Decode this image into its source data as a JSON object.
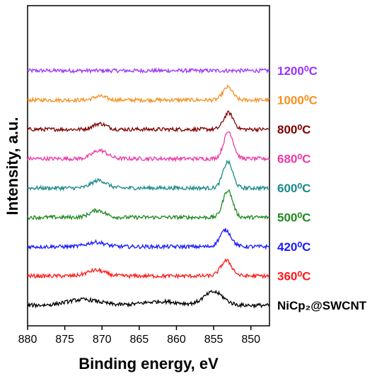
{
  "chart_data": {
    "type": "line",
    "xlabel": "Binding energy, eV",
    "ylabel": "Intensity, a.u.",
    "xlim": [
      880,
      847.5
    ],
    "x_reversed": true,
    "x_ticks": [
      880,
      875,
      870,
      865,
      860,
      855,
      850
    ],
    "y_ticks_shown": false,
    "grid": false,
    "legend": "labels placed at right end of each trace",
    "series": [
      {
        "name": "1200⁰C",
        "color": "#9933ff",
        "offset": 8.0,
        "features": []
      },
      {
        "name": "1000⁰C",
        "color": "#f5901e",
        "offset": 7.0,
        "features": [
          {
            "center": 870.3,
            "width": 0.8,
            "height": 0.12
          },
          {
            "center": 853.1,
            "width": 0.65,
            "height": 0.4
          }
        ]
      },
      {
        "name": "800⁰C",
        "color": "#800000",
        "offset": 6.0,
        "features": [
          {
            "center": 870.3,
            "width": 0.9,
            "height": 0.18
          },
          {
            "center": 853.0,
            "width": 0.65,
            "height": 0.52
          }
        ]
      },
      {
        "name": "680⁰C",
        "color": "#ec3aa6",
        "offset": 5.0,
        "features": [
          {
            "center": 870.3,
            "width": 1.0,
            "height": 0.26
          },
          {
            "center": 853.0,
            "width": 0.65,
            "height": 0.85
          }
        ]
      },
      {
        "name": "600⁰C",
        "color": "#198a8a",
        "offset": 4.0,
        "features": [
          {
            "center": 870.4,
            "width": 1.0,
            "height": 0.24
          },
          {
            "center": 853.1,
            "width": 0.65,
            "height": 0.82
          }
        ]
      },
      {
        "name": "500⁰C",
        "color": "#1f8a1f",
        "offset": 3.0,
        "features": [
          {
            "center": 870.6,
            "width": 1.0,
            "height": 0.22
          },
          {
            "center": 853.1,
            "width": 0.65,
            "height": 0.85
          }
        ]
      },
      {
        "name": "420⁰C",
        "color": "#1a1aff",
        "offset": 2.0,
        "features": [
          {
            "center": 870.8,
            "width": 1.2,
            "height": 0.14
          },
          {
            "center": 853.4,
            "width": 0.75,
            "height": 0.52
          }
        ]
      },
      {
        "name": "360⁰C",
        "color": "#ff1a1a",
        "offset": 1.0,
        "features": [
          {
            "center": 870.8,
            "width": 1.2,
            "height": 0.18
          },
          {
            "center": 853.3,
            "width": 0.75,
            "height": 0.48
          }
        ]
      },
      {
        "name": "NiCp₂@SWCNT",
        "color": "#000000",
        "offset": 0.0,
        "features": [
          {
            "center": 872.5,
            "width": 2.2,
            "height": 0.18
          },
          {
            "center": 862.0,
            "width": 2.5,
            "height": 0.12
          },
          {
            "center": 855.0,
            "width": 1.3,
            "height": 0.42
          }
        ]
      }
    ]
  }
}
